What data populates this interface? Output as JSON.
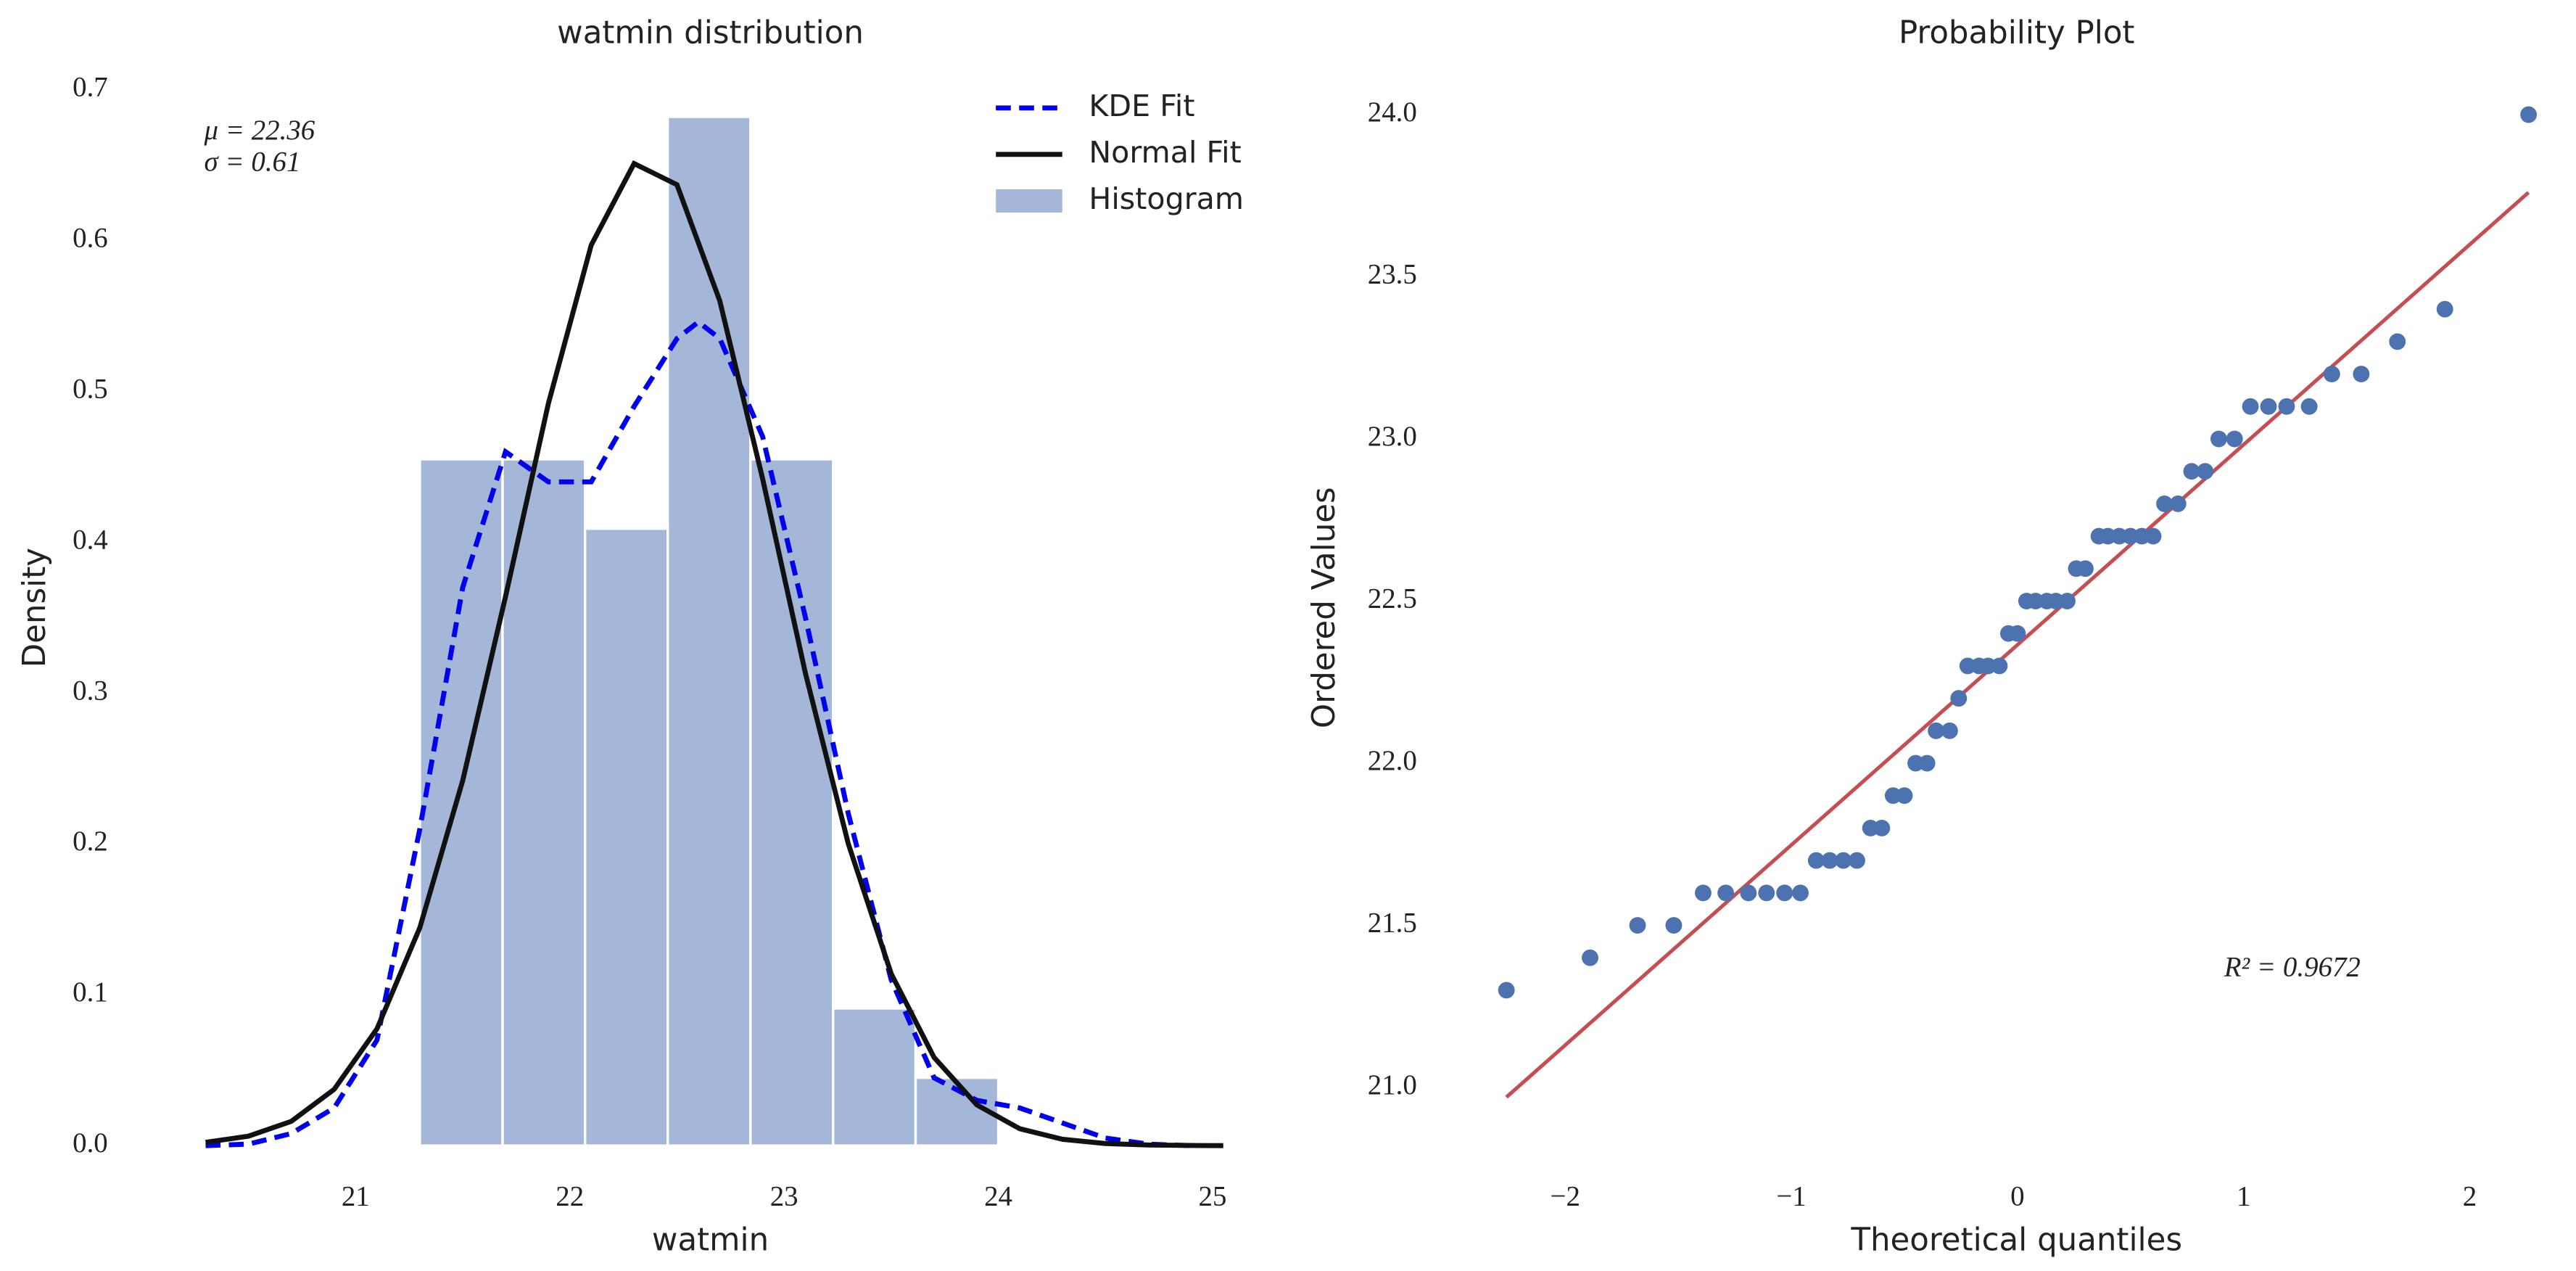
{
  "chart_data": [
    {
      "type": "histogram",
      "title": "watmin distribution",
      "xlabel": "watmin",
      "ylabel": "Density",
      "name": "Histogram",
      "color": "#a5b7d9",
      "bins": [
        21.3,
        21.686,
        22.071,
        22.457,
        22.843,
        23.229,
        23.614,
        24.0
      ],
      "values": [
        0.455,
        0.455,
        0.409,
        0.682,
        0.455,
        0.091,
        0.045
      ],
      "curves": [
        {
          "name": "KDE Fit",
          "color": "#0000ee",
          "dashed": true,
          "x": [
            20.3,
            20.5,
            20.7,
            20.9,
            21.1,
            21.3,
            21.5,
            21.7,
            21.9,
            22.1,
            22.3,
            22.5,
            22.6,
            22.7,
            22.9,
            23.1,
            23.3,
            23.5,
            23.7,
            23.9,
            24.1,
            24.3,
            24.5,
            24.7,
            24.9
          ],
          "values": [
            0.0,
            0.001,
            0.008,
            0.025,
            0.07,
            0.21,
            0.37,
            0.46,
            0.44,
            0.44,
            0.49,
            0.535,
            0.546,
            0.535,
            0.47,
            0.35,
            0.22,
            0.11,
            0.045,
            0.03,
            0.025,
            0.015,
            0.005,
            0.001,
            0.0
          ]
        },
        {
          "name": "Normal Fit",
          "color": "#111111",
          "dashed": false,
          "x": [
            20.3,
            20.5,
            20.7,
            20.9,
            21.1,
            21.3,
            21.5,
            21.7,
            21.9,
            22.1,
            22.3,
            22.5,
            22.7,
            22.9,
            23.1,
            23.3,
            23.5,
            23.7,
            23.9,
            24.1,
            24.3,
            24.5,
            24.7,
            24.9,
            25.05
          ],
          "values": [
            0.0022,
            0.0063,
            0.0161,
            0.0373,
            0.0775,
            0.1445,
            0.242,
            0.364,
            0.492,
            0.597,
            0.651,
            0.637,
            0.56,
            0.442,
            0.313,
            0.2,
            0.114,
            0.0585,
            0.027,
            0.0112,
            0.0042,
            0.0014,
            0.0004,
            0.0001,
            0.0
          ]
        }
      ],
      "annotations": [
        "μ = 22.36",
        "σ = 0.61"
      ],
      "legend": "upper right",
      "xlim": [
        20.27,
        25.05
      ],
      "ylim": [
        0,
        0.7
      ],
      "xticks": [
        21,
        22,
        23,
        24,
        25
      ],
      "yticks": [
        {
          "value": 0,
          "label": "0.0"
        },
        0.1,
        0.2,
        0.3,
        0.4,
        0.5,
        0.6,
        0.7
      ]
    },
    {
      "type": "scatter",
      "title": "Probability Plot",
      "xlabel": "Theoretical quantiles",
      "ylabel": "Ordered Values",
      "color": "#4c72b0",
      "x": [
        -2.26,
        -1.89,
        -1.68,
        -1.52,
        -1.39,
        -1.29,
        -1.19,
        -1.11,
        -1.03,
        -0.96,
        -0.89,
        -0.83,
        -0.77,
        -0.71,
        -0.65,
        -0.6,
        -0.55,
        -0.5,
        -0.45,
        -0.4,
        -0.36,
        -0.3,
        -0.26,
        -0.22,
        -0.17,
        -0.13,
        -0.08,
        -0.04,
        0,
        0.04,
        0.08,
        0.13,
        0.17,
        0.22,
        0.26,
        0.3,
        0.36,
        0.4,
        0.45,
        0.5,
        0.55,
        0.6,
        0.65,
        0.71,
        0.77,
        0.83,
        0.89,
        0.96,
        1.03,
        1.11,
        1.19,
        1.29,
        1.39,
        1.52,
        1.68,
        1.89,
        2.26
      ],
      "values": [
        21.3,
        21.4,
        21.5,
        21.5,
        21.6,
        21.6,
        21.6,
        21.6,
        21.6,
        21.6,
        21.7,
        21.7,
        21.7,
        21.7,
        21.8,
        21.8,
        21.9,
        21.9,
        22.0,
        22.0,
        22.1,
        22.1,
        22.2,
        22.3,
        22.3,
        22.3,
        22.3,
        22.4,
        22.4,
        22.5,
        22.5,
        22.5,
        22.5,
        22.5,
        22.6,
        22.6,
        22.7,
        22.7,
        22.7,
        22.7,
        22.7,
        22.7,
        22.8,
        22.8,
        22.9,
        22.9,
        23.0,
        23.0,
        23.1,
        23.1,
        23.1,
        23.1,
        23.2,
        23.2,
        23.3,
        23.4,
        24.0
      ],
      "fit": {
        "color": "#c44e52",
        "x": [
          -2.26,
          2.26
        ],
        "values": [
          20.97,
          23.76
        ]
      },
      "annotation": "R² = 0.9672",
      "xlim": [
        -2.45,
        2.45
      ],
      "ylim": [
        20.75,
        24.1
      ],
      "xticks": [
        {
          "value": -2,
          "label": "−2"
        },
        {
          "value": -1,
          "label": "−1"
        },
        0,
        1,
        2
      ],
      "yticks": [
        {
          "value": 21,
          "label": "21.0"
        },
        {
          "value": 21.5,
          "label": "21.5"
        },
        {
          "value": 22,
          "label": "22.0"
        },
        {
          "value": 22.5,
          "label": "22.5"
        },
        {
          "value": 23,
          "label": "23.0"
        },
        {
          "value": 23.5,
          "label": "23.5"
        },
        {
          "value": 24,
          "label": "24.0"
        }
      ]
    }
  ]
}
